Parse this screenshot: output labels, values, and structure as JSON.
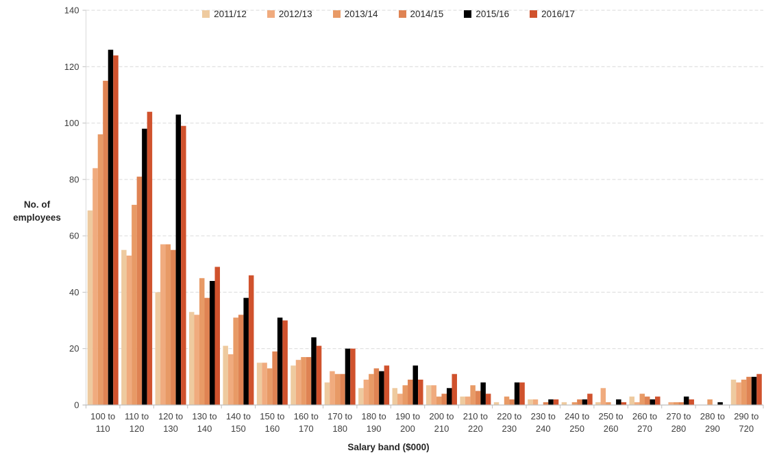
{
  "chart_data": {
    "type": "bar",
    "title": "",
    "xlabel": "Salary band ($000)",
    "ylabel": "No. of employees",
    "ylim": [
      0,
      140
    ],
    "ytick_step": 20,
    "grid": "horizontal-dashed",
    "legend_position": "top-center",
    "categories": [
      [
        "100 to",
        "110"
      ],
      [
        "110 to",
        "120"
      ],
      [
        "120 to",
        "130"
      ],
      [
        "130 to",
        "140"
      ],
      [
        "140 to",
        "150"
      ],
      [
        "150 to",
        "160"
      ],
      [
        "160 to",
        "170"
      ],
      [
        "170 to",
        "180"
      ],
      [
        "180 to",
        "190"
      ],
      [
        "190 to",
        "200"
      ],
      [
        "200 to",
        "210"
      ],
      [
        "210 to",
        "220"
      ],
      [
        "220 to",
        "230"
      ],
      [
        "230 to",
        "240"
      ],
      [
        "240 to",
        "250"
      ],
      [
        "250 to",
        "260"
      ],
      [
        "260 to",
        "270"
      ],
      [
        "270 to",
        "280"
      ],
      [
        "280 to",
        "290"
      ],
      [
        "290 to",
        "720"
      ]
    ],
    "series": [
      {
        "name": "2011/12",
        "color": "#eeca9f",
        "values": [
          69,
          55,
          40,
          33,
          21,
          15,
          14,
          8,
          6,
          6,
          7,
          3,
          1,
          2,
          1,
          1,
          3,
          0,
          0,
          9
        ]
      },
      {
        "name": "2012/13",
        "color": "#f0ab7e",
        "values": [
          84,
          53,
          57,
          32,
          18,
          15,
          16,
          12,
          9,
          4,
          7,
          3,
          0,
          2,
          0,
          6,
          1,
          1,
          0,
          8
        ]
      },
      {
        "name": "2013/14",
        "color": "#e89a66",
        "values": [
          96,
          71,
          57,
          45,
          31,
          13,
          17,
          11,
          11,
          7,
          3,
          7,
          3,
          0,
          1,
          1,
          4,
          1,
          2,
          9
        ]
      },
      {
        "name": "2014/15",
        "color": "#df8353",
        "values": [
          115,
          81,
          55,
          38,
          32,
          19,
          17,
          11,
          13,
          9,
          4,
          5,
          2,
          1,
          2,
          0,
          3,
          1,
          0,
          10
        ]
      },
      {
        "name": "2015/16",
        "color": "#000000",
        "values": [
          126,
          98,
          103,
          44,
          38,
          31,
          24,
          20,
          12,
          14,
          6,
          8,
          8,
          2,
          2,
          2,
          2,
          3,
          1,
          10
        ]
      },
      {
        "name": "2016/17",
        "color": "#d0522d",
        "values": [
          124,
          104,
          99,
          49,
          46,
          30,
          21,
          20,
          14,
          9,
          11,
          4,
          8,
          2,
          4,
          1,
          3,
          2,
          0,
          11
        ]
      }
    ]
  },
  "titles": {
    "y_line1": "No. of",
    "y_line2": "employees",
    "x": "Salary band ($000)"
  },
  "style": {
    "grid_color": "#d9d9d9",
    "axis_line_color": "#bfbfbf",
    "tick_color": "#bfbfbf",
    "text_color": "#3d3d3d"
  }
}
